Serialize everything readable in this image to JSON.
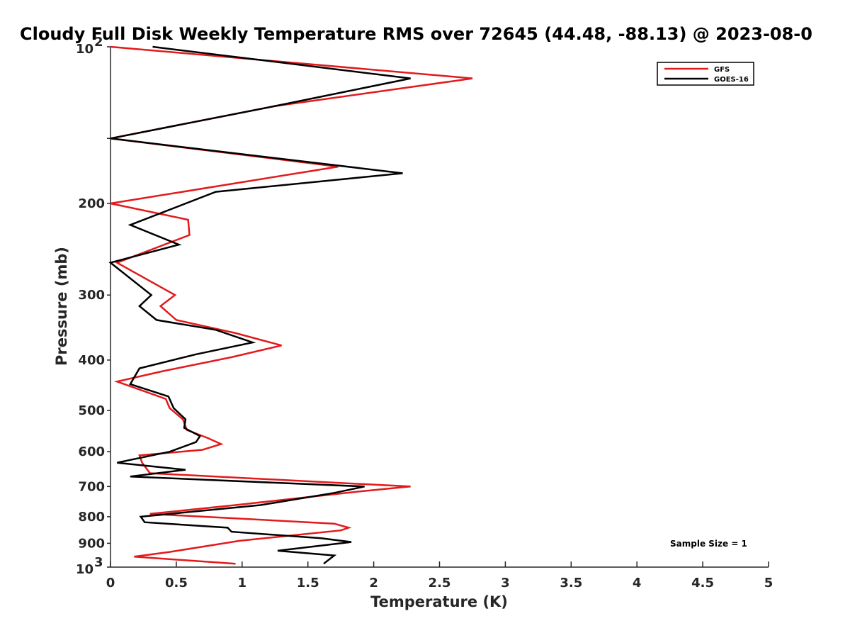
{
  "chart_data": {
    "type": "line",
    "title": "Cloudy Full Disk Weekly Temperature RMS over 72645 (44.48, -88.13) @ 2023-08-0",
    "xlabel": "Temperature (K)",
    "ylabel": "Pressure (mb)",
    "xlim": [
      0,
      5
    ],
    "ylim": [
      100,
      1000
    ],
    "y_scale": "log",
    "y_reversed": true,
    "x_ticks": [
      "0",
      "0.5",
      "1",
      "1.5",
      "2",
      "2.5",
      "3",
      "3.5",
      "4",
      "4.5",
      "5"
    ],
    "y_ticks": [
      {
        "value": 100,
        "base": "10",
        "exp": "2"
      },
      {
        "value": 200,
        "label": "200"
      },
      {
        "value": 300,
        "label": "300"
      },
      {
        "value": 400,
        "label": "400"
      },
      {
        "value": 500,
        "label": "500"
      },
      {
        "value": 600,
        "label": "600"
      },
      {
        "value": 700,
        "label": "700"
      },
      {
        "value": 800,
        "label": "800"
      },
      {
        "value": 900,
        "label": "900"
      },
      {
        "value": 1000,
        "base": "10",
        "exp": "3"
      }
    ],
    "legend_position": "top-right",
    "annotation": "Sample Size = 1",
    "series": [
      {
        "name": "GFS",
        "color": "#e31a1c",
        "x": [
          0,
          2.75,
          1.25,
          0,
          1.73,
          0,
          0.59,
          0.6,
          0.05,
          0.49,
          0.38,
          0.5,
          0.95,
          1.3,
          0.92,
          0.4,
          0.05,
          0.42,
          0.45,
          0.55,
          0.58,
          0.74,
          0.84,
          0.7,
          0.22,
          0.24,
          0.3,
          2.28,
          1.9,
          0.95,
          0.3,
          1.7,
          1.81,
          1.75,
          0.98,
          0.45,
          0.18,
          0.95
        ],
        "y": [
          100,
          115,
          130,
          150,
          170,
          200,
          215,
          230,
          260,
          300,
          315,
          335,
          355,
          375,
          395,
          420,
          440,
          475,
          495,
          520,
          545,
          565,
          580,
          595,
          610,
          630,
          660,
          700,
          715,
          760,
          790,
          825,
          840,
          850,
          890,
          935,
          955,
          985
        ]
      },
      {
        "name": "GOES-16",
        "color": "#000000",
        "x": [
          0.32,
          2.28,
          1.25,
          0,
          2.22,
          0.8,
          0.15,
          0.52,
          0,
          0.31,
          0.22,
          0.35,
          0.8,
          1.08,
          0.65,
          0.22,
          0.15,
          0.44,
          0.48,
          0.57,
          0.56,
          0.68,
          0.65,
          0.45,
          0.05,
          0.57,
          0.15,
          1.93,
          1.7,
          1.14,
          0.23,
          0.26,
          0.89,
          0.92,
          1.6,
          1.83,
          1.27,
          1.7,
          1.62
        ],
        "y": [
          100,
          115,
          130,
          150,
          175,
          190,
          220,
          240,
          260,
          300,
          315,
          335,
          350,
          370,
          390,
          415,
          445,
          470,
          495,
          520,
          540,
          560,
          575,
          600,
          630,
          650,
          670,
          700,
          720,
          760,
          800,
          820,
          840,
          855,
          880,
          895,
          930,
          950,
          985
        ]
      }
    ]
  }
}
